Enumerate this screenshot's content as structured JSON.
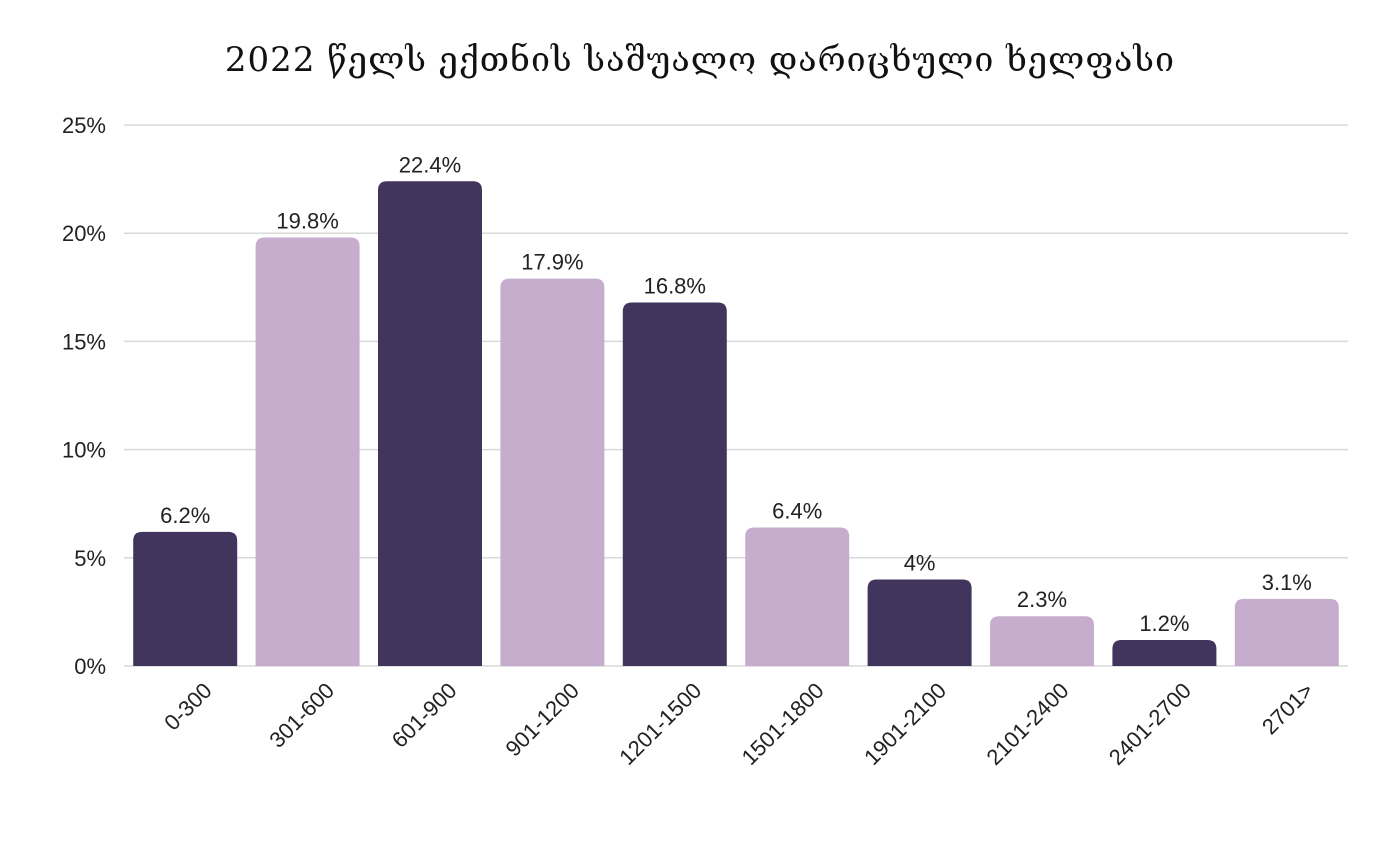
{
  "chart_data": {
    "type": "bar",
    "title": "2022 წელს ექთნის საშუალო დარიცხული ხელფასი",
    "categories": [
      "0-300",
      "301-600",
      "601-900",
      "901-1200",
      "1201-1500",
      "1501-1800",
      "1901-2100",
      "2101-2400",
      "2401-2700",
      "2701>"
    ],
    "values": [
      6.2,
      19.8,
      22.4,
      17.9,
      16.8,
      6.4,
      4,
      2.3,
      1.2,
      3.1
    ],
    "data_labels": [
      "6.2%",
      "19.8%",
      "22.4%",
      "17.9%",
      "16.8%",
      "6.4%",
      "4%",
      "2.3%",
      "1.2%",
      "3.1%"
    ],
    "ylim": [
      0,
      25
    ],
    "yticks": [
      0,
      5,
      10,
      15,
      20,
      25
    ],
    "ytick_labels": [
      "0%",
      "5%",
      "10%",
      "15%",
      "20%",
      "25%"
    ],
    "grid": true,
    "colors": {
      "dark": "#41355e",
      "light": "#c6adce",
      "grid": "#d9d9d9"
    },
    "bar_color_pattern": [
      "dark",
      "light",
      "dark",
      "light",
      "dark",
      "light",
      "dark",
      "light",
      "dark",
      "light"
    ]
  }
}
